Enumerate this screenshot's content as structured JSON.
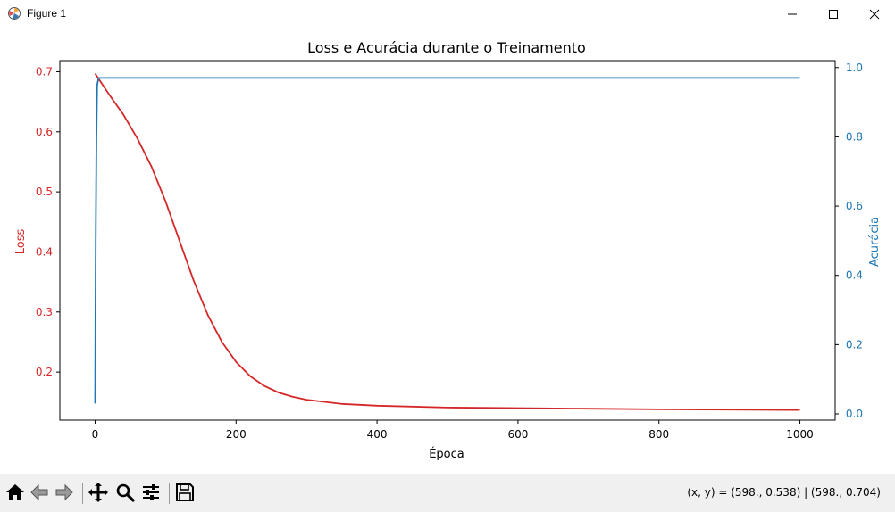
{
  "window": {
    "title": "Figure 1",
    "icon": "matplotlib-icon",
    "controls": [
      "minimize-icon",
      "maximize-icon",
      "close-icon"
    ]
  },
  "toolbar": {
    "buttons": [
      "home-icon",
      "back-arrow-icon",
      "forward-arrow-icon",
      "pan-icon",
      "zoom-icon",
      "configure-subplots-icon",
      "save-icon"
    ],
    "coords": "(x, y) = (598., 0.538) | (598., 0.704)"
  },
  "chart_data": {
    "type": "line",
    "title": "Loss e Acurácia durante o Treinamento",
    "xlabel": "Época",
    "ylabel": "Loss",
    "y2label": "Acurácia",
    "xlim": [
      -50,
      1050
    ],
    "ylim": [
      0.12,
      0.7185
    ],
    "y2lim": [
      -0.018,
      1.02
    ],
    "xticks": [
      "0",
      "200",
      "400",
      "600",
      "800",
      "1000"
    ],
    "xtick_values": [
      0,
      200,
      400,
      600,
      800,
      1000
    ],
    "yticks": [
      "0.2",
      "0.3",
      "0.4",
      "0.5",
      "0.6",
      "0.7"
    ],
    "ytick_values": [
      0.2,
      0.3,
      0.4,
      0.5,
      0.6,
      0.7
    ],
    "y2ticks": [
      "0.0",
      "0.2",
      "0.4",
      "0.6",
      "0.8",
      "1.0"
    ],
    "y2tick_values": [
      0.0,
      0.2,
      0.4,
      0.6,
      0.8,
      1.0
    ],
    "colors": {
      "loss": "#d62728",
      "accuracy": "#1f77b4"
    },
    "series": [
      {
        "axis": "left",
        "color": "#d62728",
        "x": [
          0,
          20,
          40,
          60,
          80,
          100,
          120,
          140,
          160,
          180,
          200,
          220,
          240,
          260,
          280,
          300,
          350,
          400,
          500,
          600,
          700,
          800,
          900,
          1000
        ],
        "values": [
          0.697,
          0.662,
          0.629,
          0.589,
          0.542,
          0.484,
          0.418,
          0.352,
          0.295,
          0.25,
          0.217,
          0.193,
          0.177,
          0.166,
          0.159,
          0.154,
          0.147,
          0.144,
          0.141,
          0.14,
          0.139,
          0.138,
          0.1375,
          0.137
        ]
      },
      {
        "axis": "right",
        "color": "#1f77b4",
        "x": [
          0,
          1,
          2,
          3,
          5,
          10,
          50,
          100,
          200,
          400,
          600,
          800,
          1000
        ],
        "values": [
          0.03,
          0.5,
          0.8,
          0.95,
          0.97,
          0.97,
          0.97,
          0.97,
          0.97,
          0.97,
          0.97,
          0.97,
          0.97
        ]
      }
    ]
  }
}
